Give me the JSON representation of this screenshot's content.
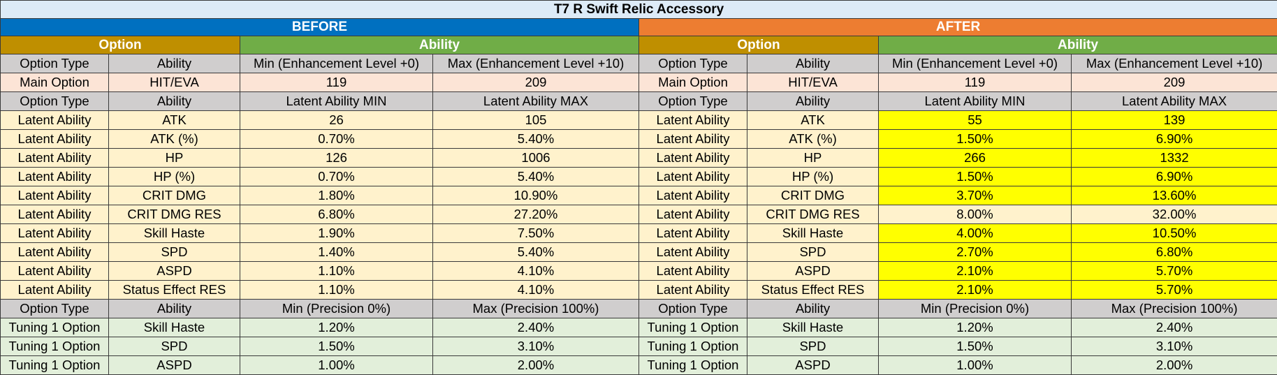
{
  "title": "T7 R Swift Relic Accessory",
  "sections": {
    "before": "BEFORE",
    "after": "AFTER"
  },
  "groups": {
    "option": "Option",
    "ability": "Ability"
  },
  "colors": {
    "before": "#0070c0",
    "after": "#ed7d31",
    "option_group": "#bf8f00",
    "ability_group": "#70ad47",
    "header_row": "#d0cece",
    "main_row": "#fce4d6",
    "latent_row": "#fff2cc",
    "tuning_row": "#e2efda",
    "highlight": "#ffff00"
  },
  "rows": [
    {
      "kind": "hdr",
      "cells": [
        "Option Type",
        "Ability",
        "Min (Enhancement Level +0)",
        "Max (Enhancement Level +10)",
        "Option Type",
        "Ability",
        "Min (Enhancement Level +0)",
        "Max (Enhancement Level +10)"
      ],
      "hl": false
    },
    {
      "kind": "main",
      "cells": [
        "Main Option",
        "HIT/EVA",
        "119",
        "209",
        "Main Option",
        "HIT/EVA",
        "119",
        "209"
      ],
      "hl": false
    },
    {
      "kind": "hdr",
      "cells": [
        "Option Type",
        "Ability",
        "Latent Ability MIN",
        "Latent Ability MAX",
        "Option Type",
        "Ability",
        "Latent Ability MIN",
        "Latent Ability MAX"
      ],
      "hl": false
    },
    {
      "kind": "latent",
      "cells": [
        "Latent Ability",
        "ATK",
        "26",
        "105",
        "Latent Ability",
        "ATK",
        "55",
        "139"
      ],
      "hl": true
    },
    {
      "kind": "latent",
      "cells": [
        "Latent Ability",
        "ATK (%)",
        "0.70%",
        "5.40%",
        "Latent Ability",
        "ATK (%)",
        "1.50%",
        "6.90%"
      ],
      "hl": true
    },
    {
      "kind": "latent",
      "cells": [
        "Latent Ability",
        "HP",
        "126",
        "1006",
        "Latent Ability",
        "HP",
        "266",
        "1332"
      ],
      "hl": true
    },
    {
      "kind": "latent",
      "cells": [
        "Latent Ability",
        "HP (%)",
        "0.70%",
        "5.40%",
        "Latent Ability",
        "HP (%)",
        "1.50%",
        "6.90%"
      ],
      "hl": true
    },
    {
      "kind": "latent",
      "cells": [
        "Latent Ability",
        "CRIT DMG",
        "1.80%",
        "10.90%",
        "Latent Ability",
        "CRIT DMG",
        "3.70%",
        "13.60%"
      ],
      "hl": true
    },
    {
      "kind": "latent",
      "cells": [
        "Latent Ability",
        "CRIT DMG RES",
        "6.80%",
        "27.20%",
        "Latent Ability",
        "CRIT DMG RES",
        "8.00%",
        "32.00%"
      ],
      "hl": false
    },
    {
      "kind": "latent",
      "cells": [
        "Latent Ability",
        "Skill Haste",
        "1.90%",
        "7.50%",
        "Latent Ability",
        "Skill Haste",
        "4.00%",
        "10.50%"
      ],
      "hl": true
    },
    {
      "kind": "latent",
      "cells": [
        "Latent Ability",
        "SPD",
        "1.40%",
        "5.40%",
        "Latent Ability",
        "SPD",
        "2.70%",
        "6.80%"
      ],
      "hl": true
    },
    {
      "kind": "latent",
      "cells": [
        "Latent Ability",
        "ASPD",
        "1.10%",
        "4.10%",
        "Latent Ability",
        "ASPD",
        "2.10%",
        "5.70%"
      ],
      "hl": true
    },
    {
      "kind": "latent",
      "cells": [
        "Latent Ability",
        "Status Effect RES",
        "1.10%",
        "4.10%",
        "Latent Ability",
        "Status Effect RES",
        "2.10%",
        "5.70%"
      ],
      "hl": true
    },
    {
      "kind": "hdr",
      "cells": [
        "Option Type",
        "Ability",
        "Min (Precision 0%)",
        "Max (Precision 100%)",
        "Option Type",
        "Ability",
        "Min (Precision 0%)",
        "Max (Precision 100%)"
      ],
      "hl": false
    },
    {
      "kind": "tuning",
      "cells": [
        "Tuning 1 Option",
        "Skill Haste",
        "1.20%",
        "2.40%",
        "Tuning 1 Option",
        "Skill Haste",
        "1.20%",
        "2.40%"
      ],
      "hl": false
    },
    {
      "kind": "tuning",
      "cells": [
        "Tuning 1 Option",
        "SPD",
        "1.50%",
        "3.10%",
        "Tuning 1 Option",
        "SPD",
        "1.50%",
        "3.10%"
      ],
      "hl": false
    },
    {
      "kind": "tuning",
      "cells": [
        "Tuning 1 Option",
        "ASPD",
        "1.00%",
        "2.00%",
        "Tuning 1 Option",
        "ASPD",
        "1.00%",
        "2.00%"
      ],
      "hl": false
    }
  ]
}
